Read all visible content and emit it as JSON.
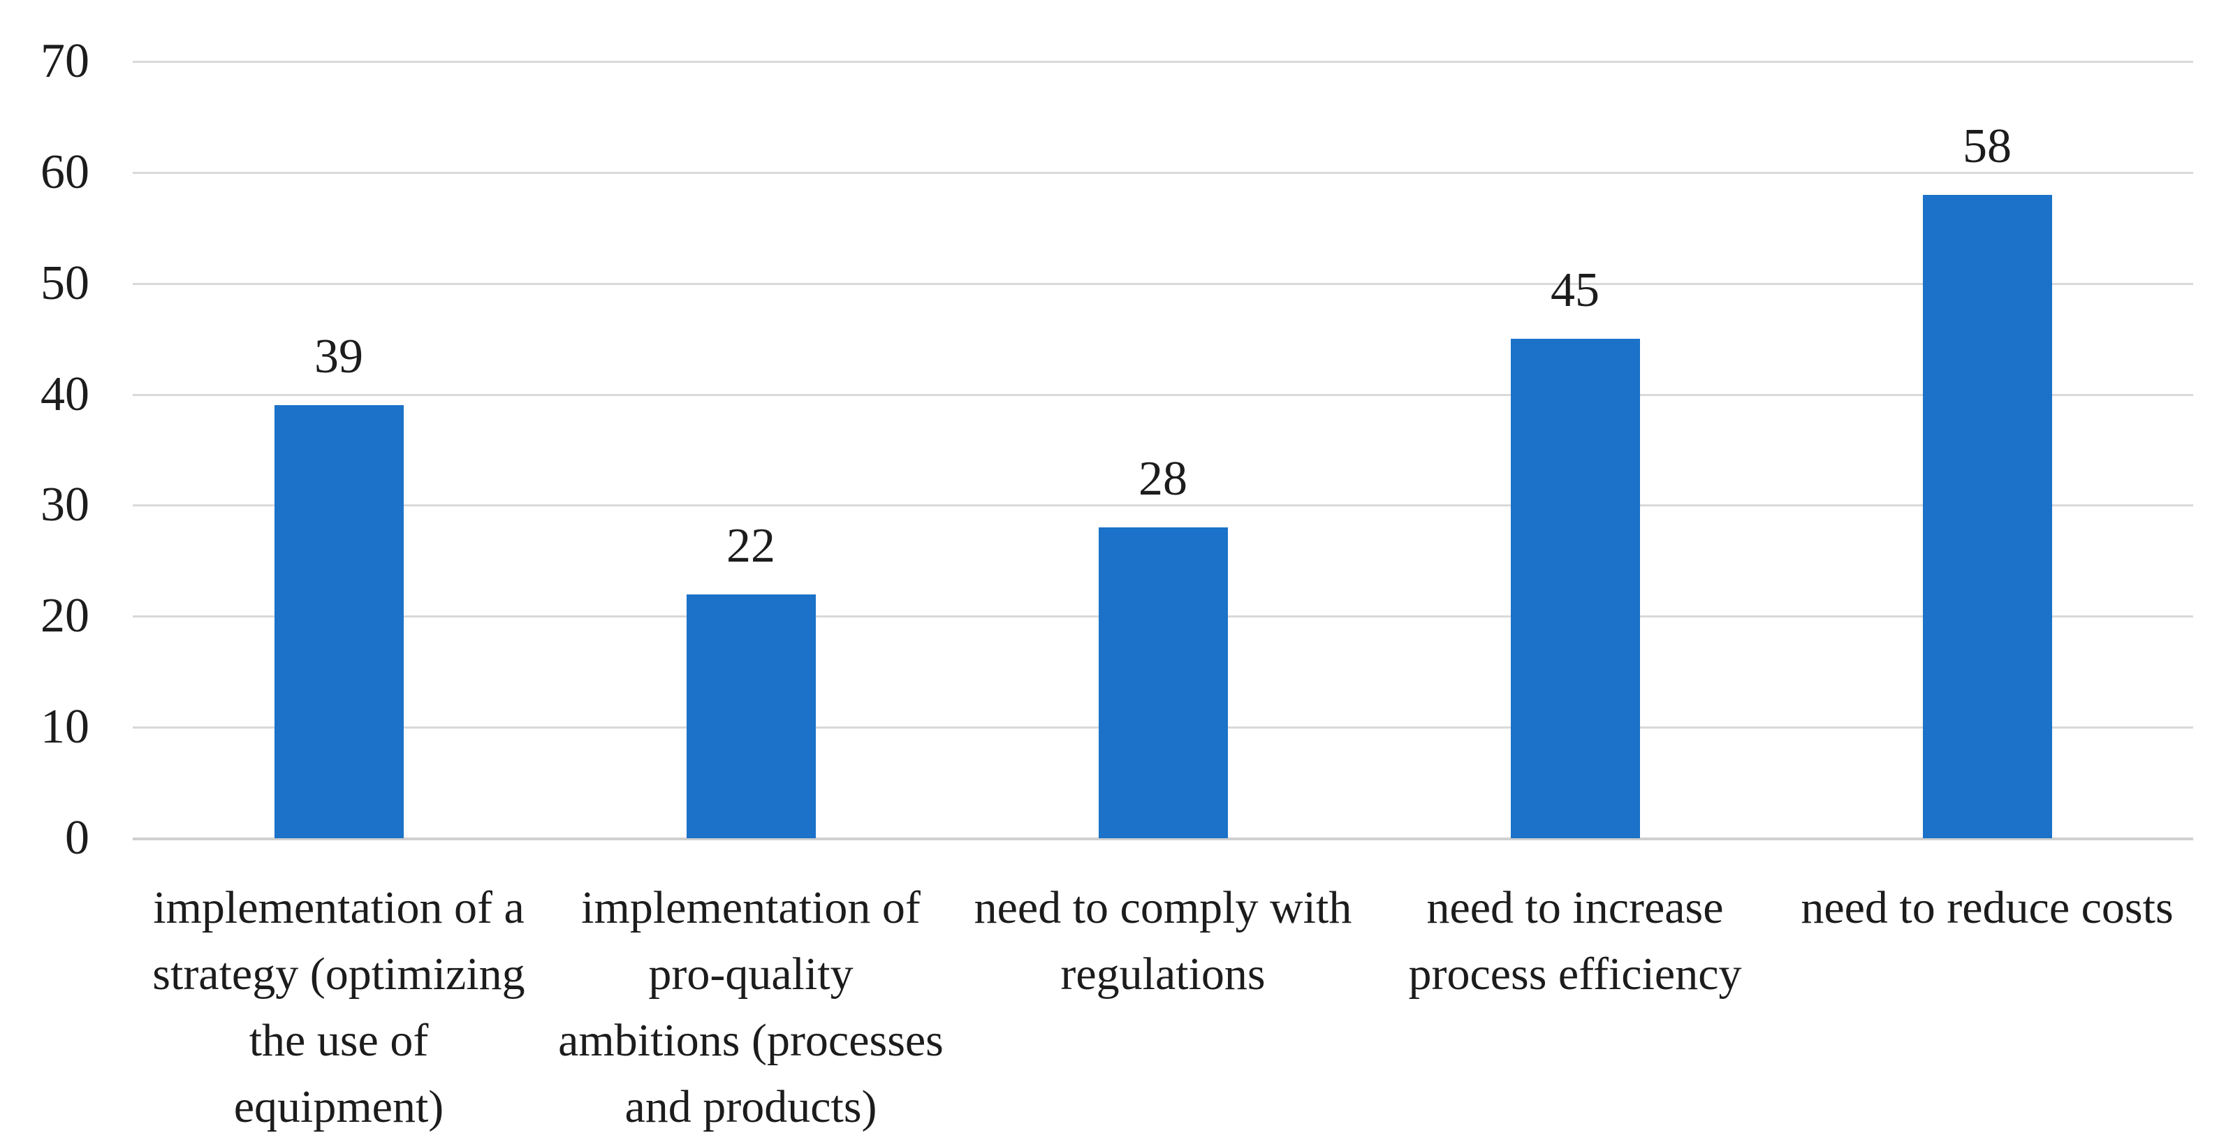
{
  "chart_data": {
    "type": "bar",
    "title": "",
    "xlabel": "",
    "ylabel": "",
    "categories": [
      "implementation of a strategy (optimizing the use of equipment)",
      "implementation of pro-quality ambitions (processes and products)",
      "need to comply with regulations",
      "need to increase process efficiency",
      "need to reduce costs"
    ],
    "category_lines": [
      [
        "implementation of a",
        "strategy (optimizing",
        "the use of",
        "equipment)"
      ],
      [
        "implementation of",
        "pro-quality",
        "ambitions (processes",
        "and products)"
      ],
      [
        "need to comply with",
        "regulations"
      ],
      [
        "need to increase",
        "process efficiency"
      ],
      [
        "need to reduce costs"
      ]
    ],
    "values": [
      39,
      22,
      28,
      45,
      58
    ],
    "data_labels": [
      "39",
      "22",
      "28",
      "45",
      "58"
    ],
    "ylim": [
      0,
      70
    ],
    "yticks": [
      "0",
      "10",
      "20",
      "30",
      "40",
      "50",
      "60",
      "70"
    ],
    "grid": "horizontal",
    "legend": "none",
    "colors": {
      "bar": "#1B72C8",
      "gridline": "#D9D9D9",
      "axis_line": "#CFCFCF",
      "text": "#1C1C1C"
    }
  }
}
